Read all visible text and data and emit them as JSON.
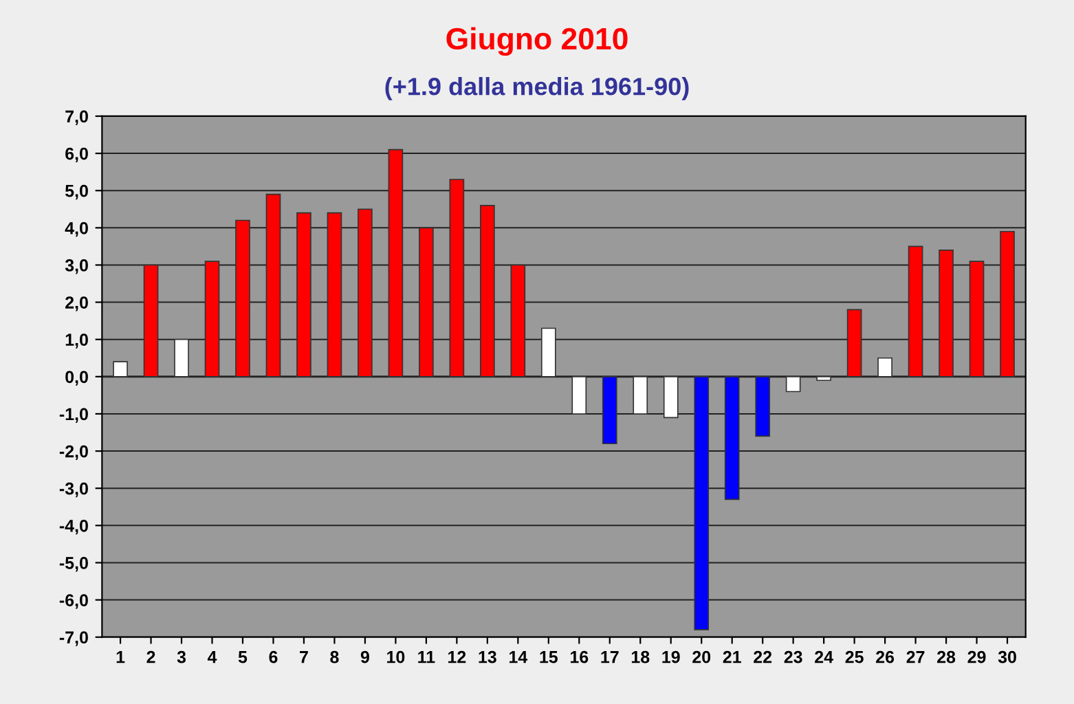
{
  "chart_data": {
    "type": "bar",
    "title": "Giugno 2010",
    "subtitle": "(+1.9 dalla media 1961-90)",
    "categories": [
      "1",
      "2",
      "3",
      "4",
      "5",
      "6",
      "7",
      "8",
      "9",
      "10",
      "11",
      "12",
      "13",
      "14",
      "15",
      "16",
      "17",
      "18",
      "19",
      "20",
      "21",
      "22",
      "23",
      "24",
      "25",
      "26",
      "27",
      "28",
      "29",
      "30"
    ],
    "values": [
      0.4,
      3.0,
      1.0,
      3.1,
      4.2,
      4.9,
      4.4,
      4.4,
      4.5,
      6.1,
      4.0,
      5.3,
      4.6,
      3.0,
      1.3,
      -1.0,
      -1.8,
      -1.0,
      -1.1,
      -6.8,
      -3.3,
      -1.6,
      -0.4,
      -0.1,
      1.8,
      0.5,
      3.5,
      3.4,
      3.1,
      3.9
    ],
    "colors": [
      "#ffffff",
      "#ff0000",
      "#ffffff",
      "#ff0000",
      "#ff0000",
      "#ff0000",
      "#ff0000",
      "#ff0000",
      "#ff0000",
      "#ff0000",
      "#ff0000",
      "#ff0000",
      "#ff0000",
      "#ff0000",
      "#ffffff",
      "#ffffff",
      "#0000ff",
      "#ffffff",
      "#ffffff",
      "#0000ff",
      "#0000ff",
      "#0000ff",
      "#ffffff",
      "#ffffff",
      "#ff0000",
      "#ffffff",
      "#ff0000",
      "#ff0000",
      "#ff0000",
      "#ff0000"
    ],
    "ylim": [
      -7,
      7
    ],
    "yticks": [
      {
        "value": 7,
        "label": "7,0"
      },
      {
        "value": 6,
        "label": "6,0"
      },
      {
        "value": 5,
        "label": "5,0"
      },
      {
        "value": 4,
        "label": "4,0"
      },
      {
        "value": 3,
        "label": "3,0"
      },
      {
        "value": 2,
        "label": "2,0"
      },
      {
        "value": 1,
        "label": "1,0"
      },
      {
        "value": 0,
        "label": "0,0"
      },
      {
        "value": -1,
        "label": "-1,0"
      },
      {
        "value": -2,
        "label": "-2,0"
      },
      {
        "value": -3,
        "label": "-3,0"
      },
      {
        "value": -4,
        "label": "-4,0"
      },
      {
        "value": -5,
        "label": "-5,0"
      },
      {
        "value": -6,
        "label": "-6,0"
      },
      {
        "value": -7,
        "label": "-7,0"
      }
    ],
    "grid": "y"
  }
}
